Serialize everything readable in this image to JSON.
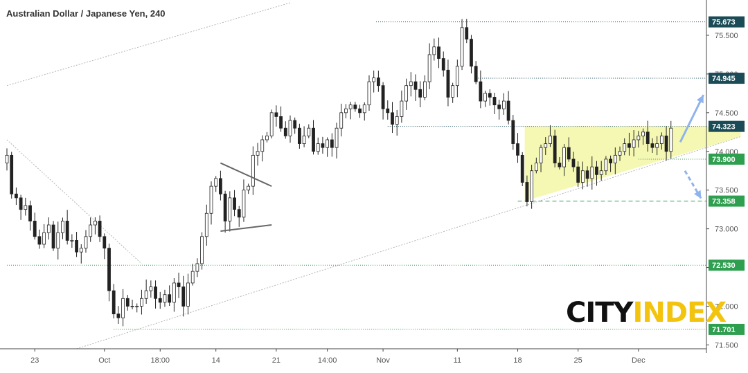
{
  "title": "Australian Dollar / Japanese Yen, 240",
  "logo": {
    "part1": "CITY",
    "part2": "INDEX"
  },
  "chart_data": {
    "type": "candlestick",
    "title": "Australian Dollar / Japanese Yen, 240",
    "ylim": [
      71.45,
      75.92
    ],
    "y_ticks": [
      71.5,
      72.0,
      72.5,
      73.0,
      73.5,
      74.0,
      74.5,
      75.0,
      75.5
    ],
    "y_tick_labels": [
      "71.500",
      "72.000",
      "72.500",
      "73.000",
      "73.500",
      "74.000",
      "74.500",
      "75.000",
      "75.500"
    ],
    "x_ticks": [
      {
        "label": "23",
        "i": 6
      },
      {
        "label": "Oct",
        "i": 21
      },
      {
        "label": "18:00",
        "i": 33
      },
      {
        "label": "14",
        "i": 45
      },
      {
        "label": "21",
        "i": 58
      },
      {
        "label": "14:00",
        "i": 69
      },
      {
        "label": "Nov",
        "i": 81
      },
      {
        "label": "11",
        "i": 97
      },
      {
        "label": "18",
        "i": 110
      },
      {
        "label": "25",
        "i": 123
      },
      {
        "label": "Dec",
        "i": 136
      }
    ],
    "price_levels": [
      {
        "value": 75.673,
        "label": "75.673",
        "color": "#1b4b56",
        "style": "dotted"
      },
      {
        "value": 74.945,
        "label": "74.945",
        "color": "#1b4b56",
        "style": "dotted"
      },
      {
        "value": 74.323,
        "label": "74.323",
        "color": "#1b4b56",
        "style": "dotted"
      },
      {
        "value": 73.9,
        "label": "73.900",
        "color": "#2e9e4f",
        "style": "dotted"
      },
      {
        "value": 73.358,
        "label": "73.358",
        "color": "#2e9e4f",
        "style": "dashed"
      },
      {
        "value": 72.53,
        "label": "72.530",
        "color": "#2e9e4f",
        "style": "dotted"
      },
      {
        "value": 71.701,
        "label": "71.701",
        "color": "#2e9e4f",
        "style": "dotted"
      }
    ],
    "n_bars": 150,
    "closes": [
      73.95,
      73.45,
      73.4,
      73.25,
      73.3,
      73.1,
      72.9,
      72.8,
      72.95,
      73.05,
      72.75,
      72.95,
      73.1,
      72.85,
      72.85,
      72.7,
      72.75,
      72.9,
      73.05,
      73.1,
      72.9,
      72.75,
      72.2,
      71.9,
      71.85,
      72.1,
      72.0,
      72.0,
      72.0,
      72.1,
      72.2,
      72.25,
      72.1,
      72.05,
      72.15,
      72.05,
      72.3,
      72.25,
      72.0,
      72.3,
      72.45,
      72.55,
      72.9,
      73.2,
      73.55,
      73.65,
      73.45,
      73.1,
      73.4,
      73.25,
      73.15,
      73.5,
      73.55,
      73.95,
      74.0,
      74.15,
      74.2,
      74.5,
      74.45,
      74.3,
      74.2,
      74.4,
      74.3,
      74.1,
      74.2,
      74.3,
      74.0,
      74.1,
      74.05,
      74.15,
      74.05,
      74.3,
      74.5,
      74.55,
      74.6,
      74.55,
      74.5,
      74.6,
      74.9,
      74.95,
      74.85,
      74.55,
      74.5,
      74.35,
      74.45,
      74.65,
      74.85,
      74.9,
      74.8,
      74.7,
      74.9,
      75.25,
      75.35,
      75.2,
      75.05,
      74.7,
      74.85,
      75.1,
      75.6,
      75.45,
      75.1,
      74.9,
      74.65,
      74.75,
      74.7,
      74.6,
      74.55,
      74.65,
      74.4,
      74.1,
      73.95,
      73.6,
      73.35,
      73.75,
      73.85,
      74.05,
      74.1,
      74.2,
      73.85,
      73.8,
      74.05,
      73.9,
      73.8,
      73.6,
      73.75,
      73.65,
      73.8,
      73.7,
      73.75,
      73.9,
      73.85,
      73.95,
      74.0,
      74.1,
      74.05,
      74.15,
      74.2,
      74.25,
      74.1,
      74.05,
      74.1,
      74.2,
      74.0,
      74.3
    ],
    "drawings": {
      "triangle": {
        "apex_price": 74.323,
        "upper_price": 74.323,
        "lower_from": [
          111.5,
          73.358
        ],
        "lower_to": [
          158,
          74.19
        ]
      },
      "pennant": {
        "upper": [
          [
            46,
            73.85
          ],
          [
            57,
            73.55
          ]
        ],
        "lower": [
          [
            46,
            72.97
          ],
          [
            57,
            73.05
          ]
        ]
      },
      "trend_lines": [
        {
          "from": [
            0,
            74.85
          ],
          "to": [
            61,
            75.92
          ]
        },
        {
          "from": [
            0,
            74.15
          ],
          "to": [
            29,
            72.55
          ]
        },
        {
          "from": [
            15,
            71.45
          ],
          "to": [
            158,
            74.19
          ]
        }
      ],
      "arrows": [
        {
          "from": [
            145,
            74.12
          ],
          "to": [
            150,
            74.73
          ],
          "style": "solid"
        },
        {
          "from": [
            146,
            73.75
          ],
          "to": [
            149.5,
            73.39
          ],
          "style": "dashed"
        }
      ]
    }
  }
}
